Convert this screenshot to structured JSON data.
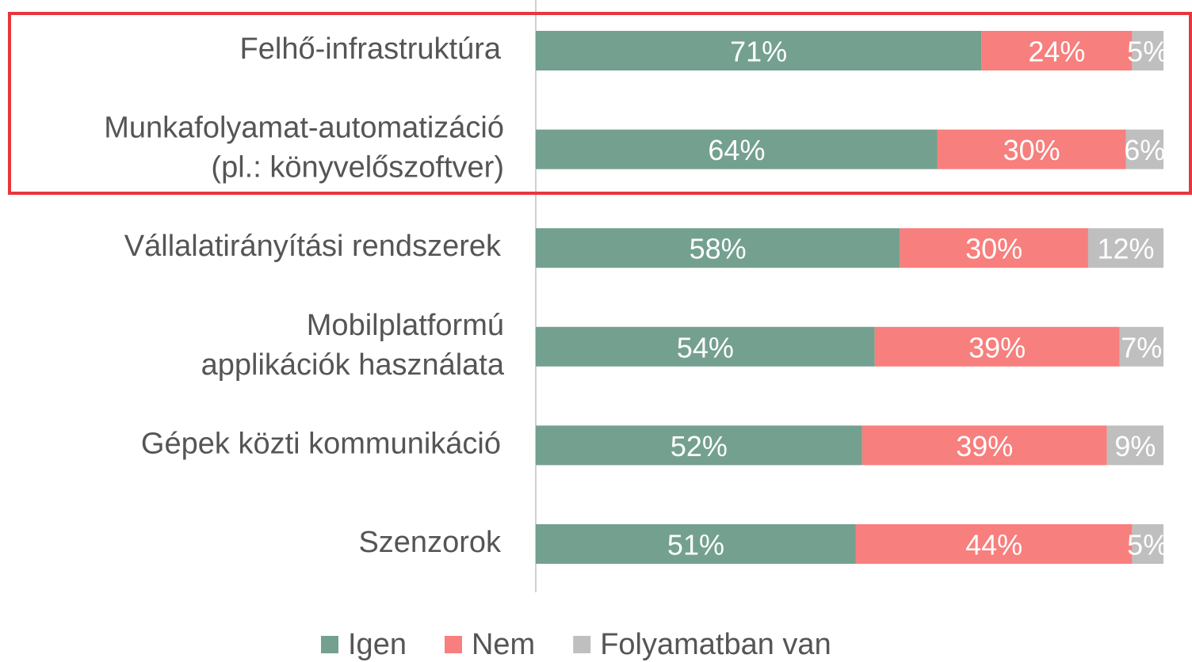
{
  "chart_data": {
    "type": "stacked_barh",
    "categories": [
      "Felhő-infrastruktúra",
      "Munkafolyamat-automatizáció\n(pl.: könyvelőszoftver)",
      "Vállalatirányítási rendszerek",
      "Mobilplatformú\napplikációk használata",
      "Gépek közti kommunikáció",
      "Szenzorok"
    ],
    "series": [
      {
        "name": "Igen",
        "color": "#74a090",
        "values": [
          71,
          64,
          58,
          54,
          52,
          51
        ],
        "value_labels": [
          "71%",
          "64%",
          "58%",
          "54%",
          "52%",
          "51%"
        ]
      },
      {
        "name": "Nem",
        "color": "#f77f7d",
        "values": [
          24,
          30,
          30,
          39,
          39,
          44
        ],
        "value_labels": [
          "24%",
          "30%",
          "30%",
          "39%",
          "39%",
          "44%"
        ]
      },
      {
        "name": "Folyamatban van",
        "color": "#bfbfbf",
        "values": [
          5,
          6,
          12,
          7,
          9,
          5
        ],
        "value_labels": [
          "5%",
          "6%",
          "12%",
          "7%",
          "9%",
          "5%"
        ]
      }
    ],
    "xlim": [
      0,
      100
    ],
    "legend": "bottom"
  }
}
